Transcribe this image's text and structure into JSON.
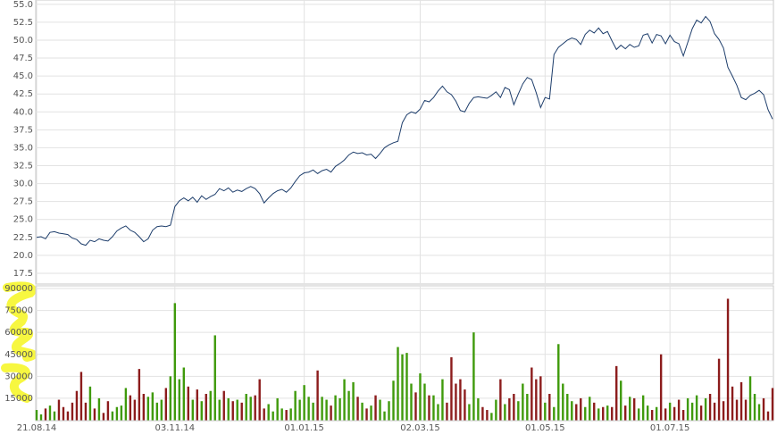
{
  "chart_data": [
    {
      "type": "line",
      "color": "#1d3d6b",
      "grid": true,
      "categories": [
        "21.08.14",
        null,
        null,
        null,
        null,
        null,
        null,
        null,
        null,
        null,
        null,
        null,
        null,
        null,
        null,
        null,
        null,
        null,
        null,
        null,
        null,
        null,
        null,
        null,
        null,
        null,
        null,
        null,
        null,
        null,
        null,
        "03.11.14",
        null,
        null,
        null,
        null,
        null,
        null,
        null,
        null,
        null,
        null,
        null,
        null,
        null,
        null,
        null,
        null,
        null,
        null,
        null,
        null,
        null,
        null,
        null,
        null,
        null,
        null,
        null,
        null,
        "01.01.15",
        null,
        null,
        null,
        null,
        null,
        null,
        null,
        null,
        null,
        null,
        null,
        null,
        null,
        null,
        null,
        null,
        null,
        null,
        null,
        null,
        null,
        null,
        null,
        null,
        null,
        "02.03.15",
        null,
        null,
        null,
        null,
        null,
        null,
        null,
        null,
        null,
        null,
        null,
        null,
        null,
        null,
        null,
        null,
        null,
        null,
        null,
        null,
        null,
        null,
        null,
        null,
        null,
        null,
        null,
        "01.05.15",
        null,
        null,
        null,
        null,
        null,
        null,
        null,
        null,
        null,
        null,
        null,
        null,
        null,
        null,
        null,
        null,
        null,
        null,
        null,
        null,
        null,
        null,
        null,
        null,
        null,
        null,
        null,
        "01.07.15",
        null,
        null,
        null,
        null,
        null,
        null,
        null,
        null,
        null,
        null,
        null,
        null,
        null,
        null,
        null,
        null,
        null,
        null,
        null,
        null,
        null,
        null,
        null
      ],
      "values": [
        22.5,
        22.6,
        22.3,
        23.2,
        23.3,
        23.1,
        23.0,
        22.9,
        22.4,
        22.2,
        21.6,
        21.4,
        22.1,
        21.9,
        22.3,
        22.1,
        22.0,
        22.6,
        23.4,
        23.8,
        24.1,
        23.5,
        23.2,
        22.6,
        21.9,
        22.3,
        23.5,
        24.0,
        24.1,
        24.0,
        24.2,
        26.8,
        27.6,
        28.0,
        27.6,
        28.1,
        27.4,
        28.3,
        27.8,
        28.2,
        28.5,
        29.3,
        29.0,
        29.4,
        28.8,
        29.1,
        28.9,
        29.3,
        29.6,
        29.3,
        28.6,
        27.3,
        28.0,
        28.6,
        29.0,
        29.2,
        28.8,
        29.4,
        30.3,
        31.1,
        31.5,
        31.6,
        31.9,
        31.4,
        31.8,
        32.0,
        31.6,
        32.4,
        32.8,
        33.3,
        34.0,
        34.4,
        34.2,
        34.3,
        34.0,
        34.1,
        33.5,
        34.2,
        35.0,
        35.4,
        35.7,
        35.9,
        38.5,
        39.6,
        40.0,
        39.8,
        40.4,
        41.6,
        41.4,
        42.0,
        42.9,
        43.6,
        42.8,
        42.4,
        41.5,
        40.2,
        40.0,
        41.2,
        42.0,
        42.1,
        42.0,
        41.9,
        42.3,
        42.8,
        42.0,
        43.4,
        43.1,
        41.0,
        42.5,
        43.9,
        44.8,
        44.5,
        42.7,
        40.6,
        42.0,
        41.8,
        48.0,
        49.0,
        49.5,
        50.0,
        50.3,
        50.1,
        49.4,
        50.8,
        51.4,
        51.0,
        51.7,
        50.9,
        51.2,
        49.9,
        48.7,
        49.3,
        48.8,
        49.4,
        49.0,
        49.2,
        50.7,
        50.9,
        49.6,
        50.8,
        50.6,
        49.5,
        50.7,
        49.8,
        49.5,
        47.8,
        49.7,
        51.6,
        52.8,
        52.4,
        53.3,
        52.6,
        50.9,
        50.1,
        48.9,
        46.2,
        45.0,
        43.7,
        42.0,
        41.7,
        42.3,
        42.6,
        43.0,
        42.4,
        40.3,
        39.0
      ],
      "ylim": [
        16,
        55.6
      ],
      "yticks": [
        17.5,
        {
          "value": 20,
          "label": "20.0"
        },
        22.5,
        {
          "value": 25,
          "label": "25.0"
        },
        27.5,
        {
          "value": 30,
          "label": "30.0"
        },
        32.5,
        {
          "value": 35,
          "label": "35.0"
        },
        37.5,
        {
          "value": 40,
          "label": "40.0"
        },
        42.5,
        {
          "value": 45,
          "label": "45.0"
        },
        47.5,
        {
          "value": 50,
          "label": "50.0"
        },
        52.5,
        {
          "value": 55,
          "label": "55.0"
        }
      ]
    },
    {
      "type": "bar",
      "up_color": "#3f9a0b",
      "down_color": "#8c1c1c",
      "grid": true,
      "values": [
        7000,
        4000,
        8000,
        10000,
        6000,
        14000,
        9000,
        6000,
        12000,
        20000,
        33000,
        12000,
        23000,
        8000,
        15000,
        5000,
        13000,
        6000,
        9000,
        10000,
        22000,
        17000,
        14000,
        35000,
        18000,
        16000,
        19000,
        12000,
        14000,
        22000,
        30000,
        80000,
        28000,
        36000,
        23000,
        14000,
        21000,
        13000,
        18000,
        20000,
        58000,
        14000,
        20000,
        15000,
        13000,
        14000,
        12000,
        18000,
        16000,
        17000,
        28000,
        8000,
        11000,
        6000,
        15000,
        8000,
        7000,
        8000,
        20000,
        14000,
        24000,
        16000,
        12000,
        34000,
        16000,
        14000,
        10000,
        17000,
        15000,
        28000,
        20000,
        26000,
        16000,
        12000,
        8000,
        10000,
        17000,
        14000,
        6000,
        13000,
        27000,
        50000,
        45000,
        46000,
        25000,
        19000,
        32000,
        25000,
        17000,
        17000,
        11000,
        28000,
        12000,
        43000,
        25000,
        28000,
        21000,
        11000,
        60000,
        15000,
        9000,
        7000,
        5000,
        14000,
        28000,
        11000,
        15000,
        18000,
        13000,
        25000,
        18000,
        36000,
        28000,
        30000,
        12000,
        18000,
        9000,
        52000,
        25000,
        18000,
        13000,
        11000,
        15000,
        9000,
        16000,
        12000,
        8000,
        9000,
        10000,
        9000,
        37000,
        27000,
        10000,
        16000,
        15000,
        8000,
        17000,
        10000,
        7000,
        9000,
        45000,
        8000,
        12000,
        9000,
        14000,
        7000,
        15000,
        12000,
        17000,
        10000,
        15000,
        18000,
        12000,
        42000,
        13000,
        83000,
        23000,
        14000,
        26000,
        14000,
        30000,
        18000,
        11000,
        15000,
        6000,
        22000
      ],
      "ylim": [
        0,
        90000
      ],
      "yticks": [
        15000,
        30000,
        45000,
        60000,
        75000,
        90000
      ]
    }
  ]
}
